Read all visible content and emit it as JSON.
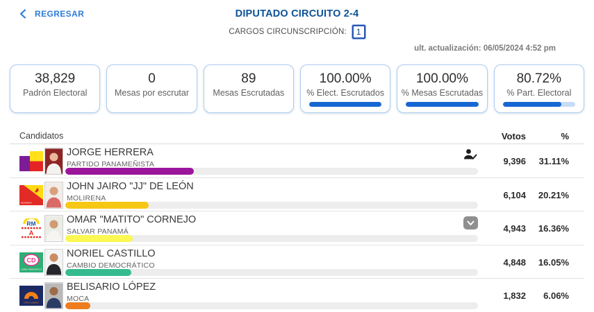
{
  "header": {
    "back_label": "REGRESAR",
    "title": "DIPUTADO CIRCUITO 2-4",
    "cargos_label": "CARGOS CIRCUNSCRIPCIÓN:",
    "cargos_value": "1",
    "last_update": "ult. actualización: 06/05/2024 4:52 pm"
  },
  "stats": [
    {
      "value": "38,829",
      "label": "Padrón Electoral"
    },
    {
      "value": "0",
      "label": "Mesas por escrutar"
    },
    {
      "value": "89",
      "label": "Mesas Escrutadas"
    },
    {
      "value": "100.00%",
      "label": "% Elect. Escrutados",
      "progress": 100
    },
    {
      "value": "100.00%",
      "label": "% Mesas Escrutadas",
      "progress": 100
    },
    {
      "value": "80.72%",
      "label": "% Part. Electoral",
      "progress": 80.72
    }
  ],
  "table": {
    "candidates_header": "Candidatos",
    "votes_header": "Votos",
    "percent_header": "%",
    "rows": [
      {
        "name": "JORGE HERRERA",
        "party": "PARTIDO PANAMEÑISTA",
        "votes": "9,396",
        "percent": "31.11%",
        "percent_value": 31.11,
        "bar_color": "#9c169c",
        "leading": true
      },
      {
        "name": "JOHN JAIRO \"JJ\" DE LEÓN",
        "party": "MOLIRENA",
        "votes": "6,104",
        "percent": "20.21%",
        "percent_value": 20.21,
        "bar_color": "#f6c715"
      },
      {
        "name": "OMAR \"MATITO\" CORNEJO",
        "party": "SALVAR PANAMÁ",
        "votes": "4,943",
        "percent": "16.36%",
        "percent_value": 16.36,
        "bar_color": "#fbf851",
        "expandable": true
      },
      {
        "name": "NORIEL CASTILLO",
        "party": "CAMBIO DEMOCRÁTICO",
        "votes": "4,848",
        "percent": "16.05%",
        "percent_value": 16.05,
        "bar_color": "#36bb90"
      },
      {
        "name": "BELISARIO LÓPEZ",
        "party": "MOCA",
        "votes": "1,832",
        "percent": "6.06%",
        "percent_value": 6.06,
        "bar_color": "#ee7d20"
      }
    ]
  },
  "colors": {
    "accent_blue": "#1767d2",
    "title_blue": "#0d5296",
    "link_blue": "#2e7cd6",
    "progress_track": "#c7dcf6",
    "bar_track": "#ededed"
  }
}
